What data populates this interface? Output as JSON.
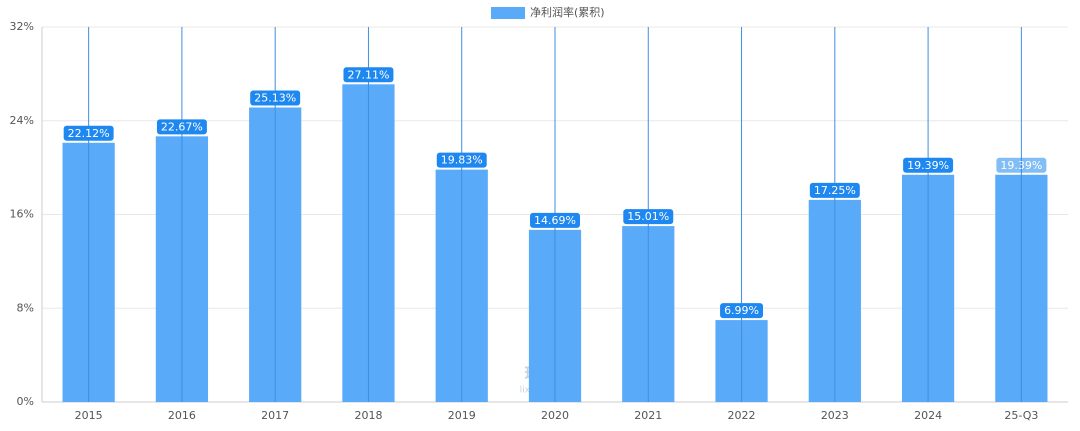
{
  "chart_data": {
    "type": "bar",
    "legend": "净利润率(累积)",
    "categories": [
      "2015",
      "2016",
      "2017",
      "2018",
      "2019",
      "2020",
      "2021",
      "2022",
      "2023",
      "2024",
      "25-Q3"
    ],
    "values": [
      22.12,
      22.67,
      25.13,
      27.11,
      19.83,
      14.69,
      15.01,
      6.99,
      17.25,
      19.39,
      19.39
    ],
    "value_labels": [
      "22.12%",
      "22.67%",
      "25.13%",
      "27.11%",
      "19.83%",
      "14.69%",
      "15.01%",
      "6.99%",
      "17.25%",
      "19.39%",
      "19.39%"
    ],
    "color": "#5aaafa",
    "ylim": [
      0,
      32
    ],
    "yticks": [
      {
        "value": 0,
        "label": "0%"
      },
      {
        "value": 8,
        "label": "8%"
      },
      {
        "value": 16,
        "label": "16%"
      },
      {
        "value": 24,
        "label": "24%"
      },
      {
        "value": 32,
        "label": "32%"
      }
    ],
    "grid": true,
    "watermark": [
      "理杏仁",
      "lixinger.com"
    ]
  }
}
